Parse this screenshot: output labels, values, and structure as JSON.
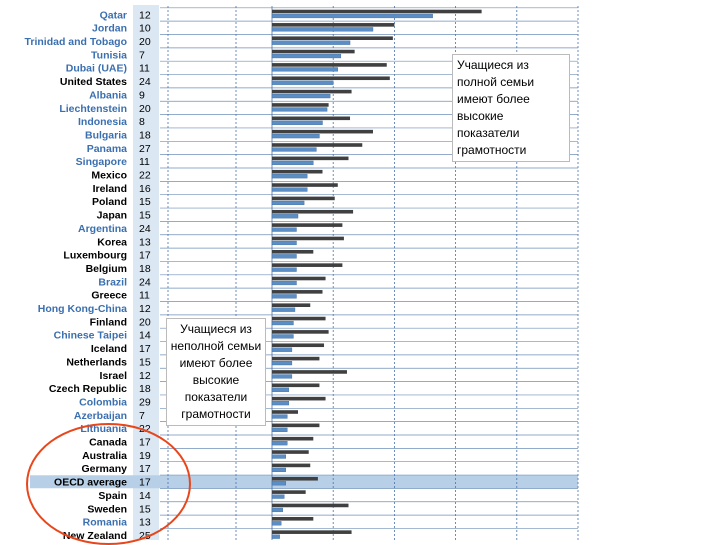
{
  "chart_data": {
    "type": "bar",
    "orientation": "horizontal",
    "title": "",
    "xlabel": "",
    "ylabel": "",
    "xlim": [
      0,
      100
    ],
    "grid": true,
    "legend": "none",
    "categories": [
      {
        "name": "Qatar",
        "pct": "12",
        "oecd": false,
        "blue_label": true
      },
      {
        "name": "Jordan",
        "pct": "10",
        "oecd": false,
        "blue_label": true
      },
      {
        "name": "Trinidad and Tobago",
        "pct": "20",
        "oecd": false,
        "blue_label": true
      },
      {
        "name": "Tunisia",
        "pct": "7",
        "oecd": false,
        "blue_label": true
      },
      {
        "name": "Dubai (UAE)",
        "pct": "11",
        "oecd": false,
        "blue_label": true
      },
      {
        "name": "United States",
        "pct": "24",
        "oecd": true,
        "blue_label": false
      },
      {
        "name": "Albania",
        "pct": "9",
        "oecd": false,
        "blue_label": true
      },
      {
        "name": "Liechtenstein",
        "pct": "20",
        "oecd": false,
        "blue_label": true
      },
      {
        "name": "Indonesia",
        "pct": "8",
        "oecd": false,
        "blue_label": true
      },
      {
        "name": "Bulgaria",
        "pct": "18",
        "oecd": false,
        "blue_label": true
      },
      {
        "name": "Panama",
        "pct": "27",
        "oecd": false,
        "blue_label": true
      },
      {
        "name": "Singapore",
        "pct": "11",
        "oecd": false,
        "blue_label": true
      },
      {
        "name": "Mexico",
        "pct": "22",
        "oecd": true,
        "blue_label": false
      },
      {
        "name": "Ireland",
        "pct": "16",
        "oecd": true,
        "blue_label": false
      },
      {
        "name": "Poland",
        "pct": "15",
        "oecd": true,
        "blue_label": false
      },
      {
        "name": "Japan",
        "pct": "15",
        "oecd": true,
        "blue_label": false
      },
      {
        "name": "Argentina",
        "pct": "24",
        "oecd": false,
        "blue_label": true
      },
      {
        "name": "Korea",
        "pct": "13",
        "oecd": true,
        "blue_label": false
      },
      {
        "name": "Luxembourg",
        "pct": "17",
        "oecd": true,
        "blue_label": false
      },
      {
        "name": "Belgium",
        "pct": "18",
        "oecd": true,
        "blue_label": false
      },
      {
        "name": "Brazil",
        "pct": "24",
        "oecd": false,
        "blue_label": true
      },
      {
        "name": "Greece",
        "pct": "11",
        "oecd": true,
        "blue_label": false
      },
      {
        "name": "Hong Kong-China",
        "pct": "12",
        "oecd": false,
        "blue_label": true
      },
      {
        "name": "Finland",
        "pct": "20",
        "oecd": true,
        "blue_label": false
      },
      {
        "name": "Chinese Taipei",
        "pct": "14",
        "oecd": false,
        "blue_label": true
      },
      {
        "name": "Iceland",
        "pct": "17",
        "oecd": true,
        "blue_label": false
      },
      {
        "name": "Netherlands",
        "pct": "15",
        "oecd": true,
        "blue_label": false
      },
      {
        "name": "Israel",
        "pct": "12",
        "oecd": true,
        "blue_label": false
      },
      {
        "name": "Czech Republic",
        "pct": "18",
        "oecd": true,
        "blue_label": false
      },
      {
        "name": "Colombia",
        "pct": "29",
        "oecd": false,
        "blue_label": true
      },
      {
        "name": "Azerbaijan",
        "pct": "7",
        "oecd": false,
        "blue_label": true
      },
      {
        "name": "Lithuania",
        "pct": "22",
        "oecd": false,
        "blue_label": true
      },
      {
        "name": "Canada",
        "pct": "17",
        "oecd": true,
        "blue_label": false
      },
      {
        "name": "Australia",
        "pct": "19",
        "oecd": true,
        "blue_label": false
      },
      {
        "name": "Germany",
        "pct": "17",
        "oecd": true,
        "blue_label": false
      },
      {
        "name": "OECD average",
        "pct": "17",
        "oecd": true,
        "blue_label": false,
        "highlight": true
      },
      {
        "name": "Spain",
        "pct": "14",
        "oecd": true,
        "blue_label": false
      },
      {
        "name": "Sweden",
        "pct": "15",
        "oecd": true,
        "blue_label": false
      },
      {
        "name": "Romania",
        "pct": "13",
        "oecd": false,
        "blue_label": true
      },
      {
        "name": "New Zealand",
        "pct": "25",
        "oecd": true,
        "blue_label": false
      }
    ],
    "series": [
      {
        "color": "#404040",
        "values": [
          68.5,
          40,
          39.5,
          27,
          37.5,
          38.5,
          26,
          18.5,
          25.5,
          33,
          29.5,
          25,
          16.5,
          21.5,
          20.5,
          26.5,
          23,
          23.5,
          13.5,
          23,
          17.5,
          16.5,
          12.5,
          17.5,
          18.5,
          17,
          15.5,
          24.5,
          15.5,
          17.5,
          8.5,
          15.5,
          13.5,
          12,
          12.5,
          15,
          11,
          25,
          13.5,
          26
        ]
      },
      {
        "color": "#5b8ec4",
        "values": [
          52.5,
          33,
          25.5,
          22.5,
          21.5,
          20,
          19,
          18,
          16.5,
          15.5,
          14.5,
          13.5,
          11.5,
          11.5,
          10.5,
          8.5,
          8,
          8,
          8,
          8,
          8,
          8,
          7.5,
          7,
          7,
          6.5,
          6.5,
          6.5,
          5.5,
          5.5,
          5,
          5,
          5,
          4.5,
          4.5,
          4.5,
          4,
          3.5,
          3,
          2.5
        ]
      }
    ],
    "colors": {
      "blue_label": "#3a6fb0",
      "oecd_label": "#000000",
      "highlight_band": "#b7d0e8",
      "pct_column": "#dbe7f3",
      "circle": "#e8471c"
    }
  },
  "annotations": {
    "right": "Учащиеся из полной семьи имеют более высокие показатели грамотности",
    "left": "Учащиеся из неполной семьи имеют более высокие показатели грамотности"
  }
}
